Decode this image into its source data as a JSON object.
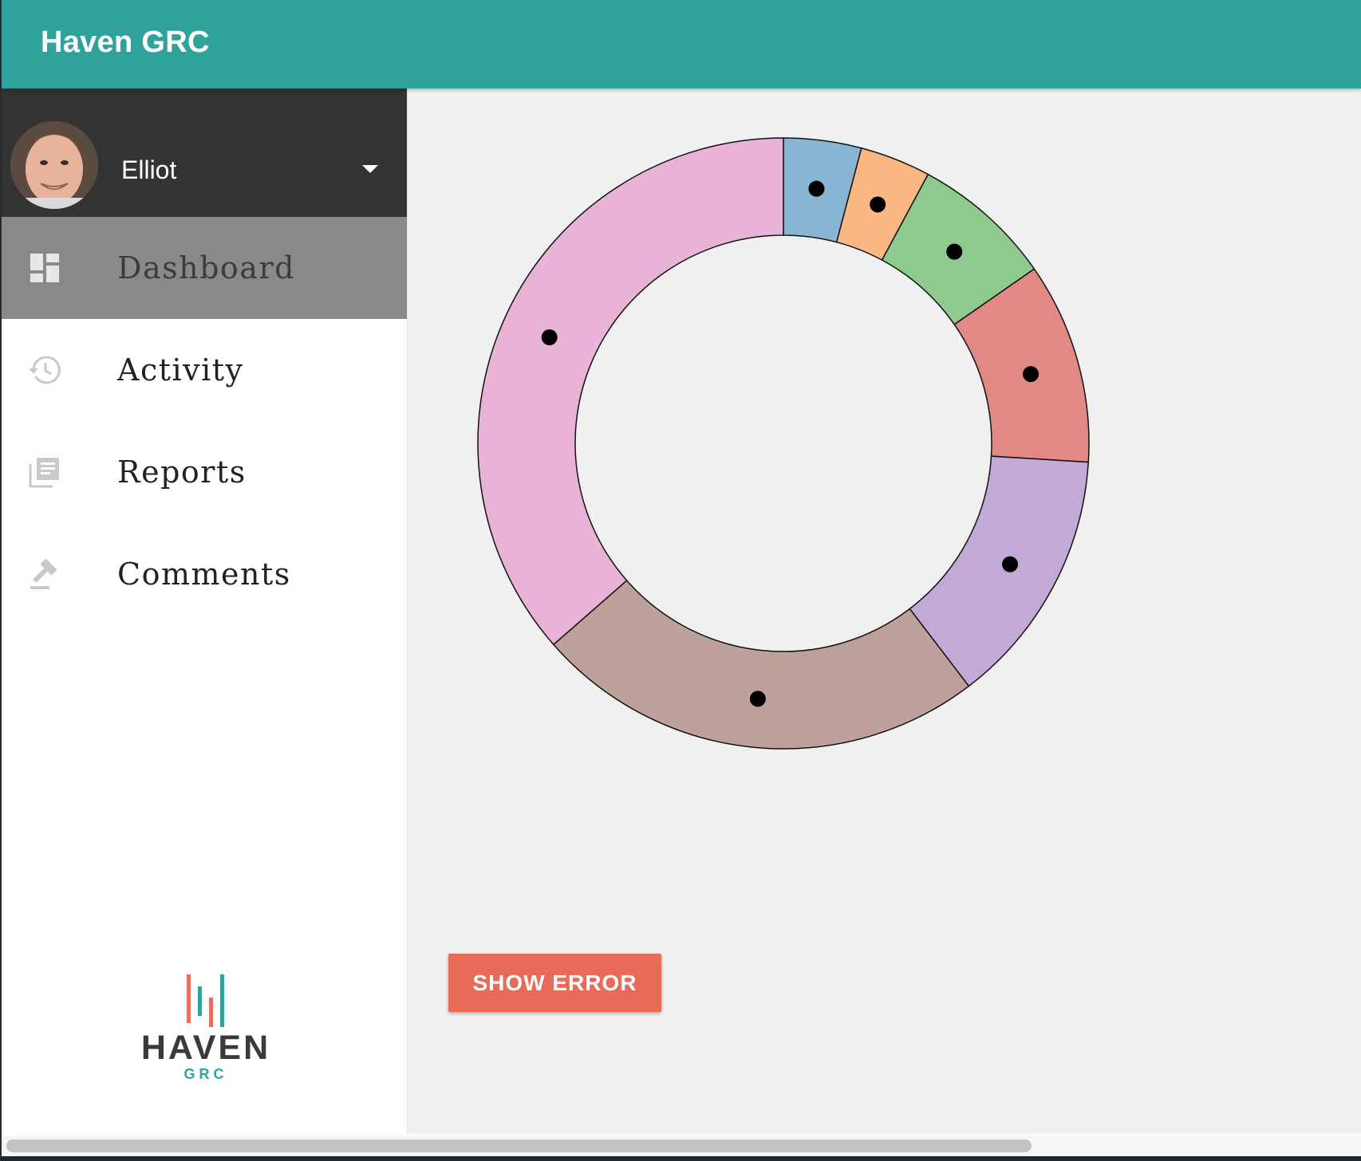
{
  "app": {
    "title": "Haven GRC",
    "accent_color": "#2fa29c"
  },
  "user": {
    "name": "Elliot",
    "avatar_icon": "user-avatar-photo",
    "menu_icon": "caret-down-icon"
  },
  "nav": {
    "items": [
      {
        "label": "Dashboard",
        "icon": "dashboard-icon",
        "active": true
      },
      {
        "label": "Activity",
        "icon": "history-icon",
        "active": false
      },
      {
        "label": "Reports",
        "icon": "library-books-icon",
        "active": false
      },
      {
        "label": "Comments",
        "icon": "gavel-icon",
        "active": false
      }
    ]
  },
  "logo": {
    "word": "HAVEN",
    "sub": "GRC"
  },
  "chart_data": {
    "type": "pie",
    "variant": "donut",
    "title": "",
    "labels_shown": false,
    "values": [
      2.2,
      2.0,
      4.0,
      5.7,
      7.3,
      12.8,
      19.5
    ],
    "colors": [
      "#88b5d3",
      "#fbb781",
      "#8ec98d",
      "#e28985",
      "#c3aad6",
      "#bfa19c",
      "#e9b3d8"
    ]
  },
  "actions": {
    "show_error_label": "SHOW ERROR",
    "show_error_color": "#e86a58"
  }
}
